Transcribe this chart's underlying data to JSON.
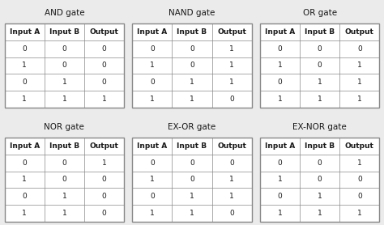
{
  "gates": [
    {
      "title": "AND gate",
      "headers": [
        "Input A",
        "Input B",
        "Output"
      ],
      "rows": [
        [
          "0",
          "0",
          "0"
        ],
        [
          "1",
          "0",
          "0"
        ],
        [
          "0",
          "1",
          "0"
        ],
        [
          "1",
          "1",
          "1"
        ]
      ]
    },
    {
      "title": "NAND gate",
      "headers": [
        "Input A",
        "Input B",
        "Output"
      ],
      "rows": [
        [
          "0",
          "0",
          "1"
        ],
        [
          "1",
          "0",
          "1"
        ],
        [
          "0",
          "1",
          "1"
        ],
        [
          "1",
          "1",
          "0"
        ]
      ]
    },
    {
      "title": "OR gate",
      "headers": [
        "Input A",
        "Input B",
        "Output"
      ],
      "rows": [
        [
          "0",
          "0",
          "0"
        ],
        [
          "1",
          "0",
          "1"
        ],
        [
          "0",
          "1",
          "1"
        ],
        [
          "1",
          "1",
          "1"
        ]
      ]
    },
    {
      "title": "NOR gate",
      "headers": [
        "Input A",
        "Input B",
        "Output"
      ],
      "rows": [
        [
          "0",
          "0",
          "1"
        ],
        [
          "1",
          "0",
          "0"
        ],
        [
          "0",
          "1",
          "0"
        ],
        [
          "1",
          "1",
          "0"
        ]
      ]
    },
    {
      "title": "EX-OR gate",
      "headers": [
        "Input A",
        "Input B",
        "Output"
      ],
      "rows": [
        [
          "0",
          "0",
          "0"
        ],
        [
          "1",
          "0",
          "1"
        ],
        [
          "0",
          "1",
          "1"
        ],
        [
          "1",
          "1",
          "0"
        ]
      ]
    },
    {
      "title": "EX-NOR gate",
      "headers": [
        "Input A",
        "Input B",
        "Output"
      ],
      "rows": [
        [
          "0",
          "0",
          "1"
        ],
        [
          "1",
          "0",
          "0"
        ],
        [
          "0",
          "1",
          "0"
        ],
        [
          "1",
          "1",
          "1"
        ]
      ]
    }
  ],
  "bg_color": "#ebebeb",
  "table_bg": "#ffffff",
  "title_fontsize": 7.5,
  "header_fontsize": 6.5,
  "cell_fontsize": 6.5,
  "text_color": "#1a1a1a",
  "title_color": "#1a1a1a",
  "border_color": "#888888",
  "outer_border_lw": 1.0,
  "inner_border_lw": 0.5
}
